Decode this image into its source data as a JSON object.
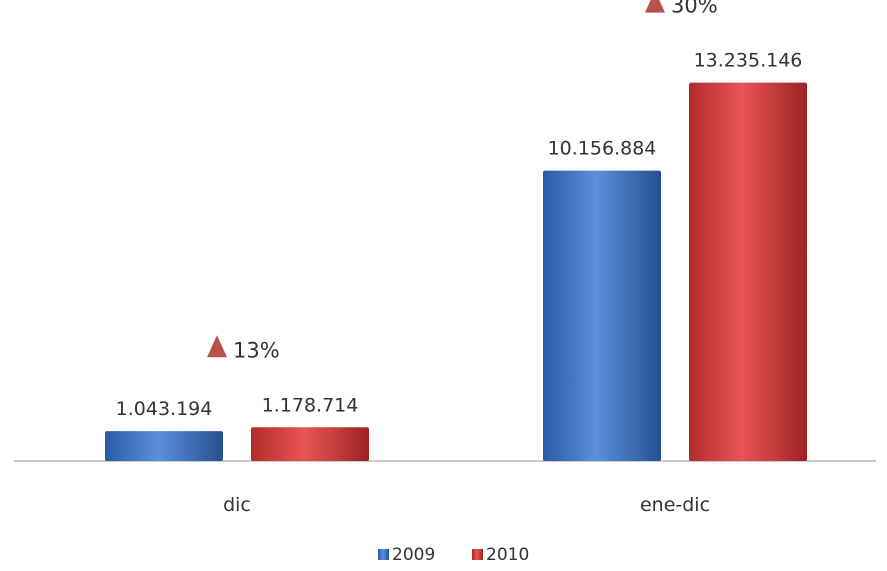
{
  "chart_data": {
    "type": "bar",
    "categories": [
      "dic",
      "ene-dic"
    ],
    "series": [
      {
        "name": "2009",
        "values": [
          1043194,
          10156884
        ],
        "labels": [
          "1.043.194",
          "10.156.884"
        ],
        "color": "#3f72c1"
      },
      {
        "name": "2010",
        "values": [
          1178714,
          13235146
        ],
        "labels": [
          "1.178.714",
          "13.235.146"
        ],
        "color": "#cc3434"
      }
    ],
    "annotations": [
      {
        "category": "dic",
        "text": "13%",
        "marker": "triangle-up-icon",
        "color": "#b8514a"
      },
      {
        "category": "ene-dic",
        "text": "30%",
        "marker": "triangle-up-icon",
        "color": "#b8514a"
      }
    ],
    "title": "",
    "xlabel": "",
    "ylabel": "",
    "grid": false,
    "legend": "bottom",
    "ylim": [
      0,
      13500000
    ]
  }
}
